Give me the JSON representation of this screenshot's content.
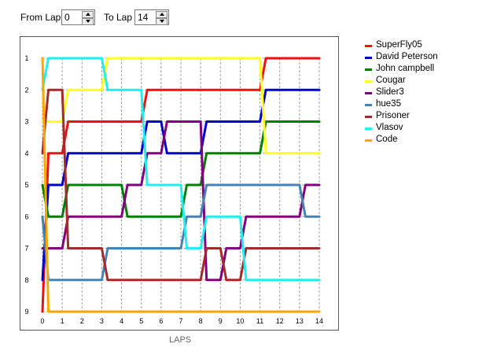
{
  "toolbar": {
    "from_label": "From Lap",
    "from_value": "0",
    "to_label": "To Lap",
    "to_value": "14"
  },
  "chart_data": {
    "type": "line",
    "xlabel": "LAPS",
    "ylabel": "",
    "x_ticks": [
      "0",
      "1",
      "2",
      "3",
      "4",
      "5",
      "6",
      "7",
      "8",
      "9",
      "10",
      "11",
      "12",
      "13",
      "14"
    ],
    "y_ticks": [
      "1",
      "2",
      "3",
      "4",
      "5",
      "6",
      "7",
      "8",
      "9"
    ],
    "xlim": [
      0,
      14
    ],
    "ylim": [
      1,
      9
    ],
    "y_inverted": true,
    "grid": true,
    "legend_position": "right",
    "series": [
      {
        "name": "SuperFly05",
        "color": "#ee1111",
        "points": [
          [
            0,
            9
          ],
          [
            1,
            4
          ],
          [
            2,
            3
          ],
          [
            3,
            3
          ],
          [
            4,
            3
          ],
          [
            5,
            3
          ],
          [
            6,
            2
          ],
          [
            7,
            2
          ],
          [
            8,
            2
          ],
          [
            9,
            2
          ],
          [
            10,
            2
          ],
          [
            11,
            2
          ],
          [
            12,
            1
          ],
          [
            13,
            1
          ],
          [
            14,
            1
          ]
        ]
      },
      {
        "name": "David Peterson",
        "color": "#0000cc",
        "points": [
          [
            0,
            8
          ],
          [
            1,
            5
          ],
          [
            2,
            4
          ],
          [
            3,
            4
          ],
          [
            4,
            4
          ],
          [
            5,
            4
          ],
          [
            6,
            3
          ],
          [
            7,
            4
          ],
          [
            8,
            4
          ],
          [
            9,
            3
          ],
          [
            10,
            3
          ],
          [
            11,
            3
          ],
          [
            12,
            2
          ],
          [
            13,
            2
          ],
          [
            14,
            2
          ]
        ]
      },
      {
        "name": "John campbell",
        "color": "#008000",
        "points": [
          [
            0,
            5
          ],
          [
            1,
            6
          ],
          [
            2,
            5
          ],
          [
            3,
            5
          ],
          [
            4,
            5
          ],
          [
            5,
            6
          ],
          [
            6,
            6
          ],
          [
            7,
            6
          ],
          [
            8,
            5
          ],
          [
            9,
            4
          ],
          [
            10,
            4
          ],
          [
            11,
            4
          ],
          [
            12,
            3
          ],
          [
            13,
            3
          ],
          [
            14,
            3
          ]
        ]
      },
      {
        "name": "Cougar",
        "color": "#ffff22",
        "points": [
          [
            0,
            3
          ],
          [
            1,
            3
          ],
          [
            2,
            2
          ],
          [
            3,
            2
          ],
          [
            4,
            1
          ],
          [
            5,
            1
          ],
          [
            6,
            1
          ],
          [
            7,
            1
          ],
          [
            8,
            1
          ],
          [
            9,
            1
          ],
          [
            10,
            1
          ],
          [
            11,
            1
          ],
          [
            12,
            4
          ],
          [
            13,
            4
          ],
          [
            14,
            4
          ]
        ]
      },
      {
        "name": "Slider3",
        "color": "#800080",
        "points": [
          [
            0,
            7
          ],
          [
            1,
            7
          ],
          [
            2,
            6
          ],
          [
            3,
            6
          ],
          [
            4,
            6
          ],
          [
            5,
            5
          ],
          [
            6,
            4
          ],
          [
            7,
            3
          ],
          [
            8,
            3
          ],
          [
            9,
            8
          ],
          [
            10,
            7
          ],
          [
            11,
            6
          ],
          [
            12,
            6
          ],
          [
            13,
            6
          ],
          [
            14,
            5
          ]
        ]
      },
      {
        "name": "hue35",
        "color": "#4682b4",
        "points": [
          [
            0,
            6
          ],
          [
            1,
            8
          ],
          [
            2,
            8
          ],
          [
            3,
            8
          ],
          [
            4,
            7
          ],
          [
            5,
            7
          ],
          [
            6,
            7
          ],
          [
            7,
            7
          ],
          [
            8,
            6
          ],
          [
            9,
            5
          ],
          [
            10,
            5
          ],
          [
            11,
            5
          ],
          [
            12,
            5
          ],
          [
            13,
            5
          ],
          [
            14,
            6
          ]
        ]
      },
      {
        "name": "Prisoner",
        "color": "#a52a2a",
        "points": [
          [
            0,
            4
          ],
          [
            1,
            2
          ],
          [
            2,
            7
          ],
          [
            3,
            7
          ],
          [
            4,
            8
          ],
          [
            5,
            8
          ],
          [
            6,
            8
          ],
          [
            7,
            8
          ],
          [
            8,
            8
          ],
          [
            9,
            7
          ],
          [
            10,
            8
          ],
          [
            11,
            7
          ],
          [
            12,
            7
          ],
          [
            13,
            7
          ],
          [
            14,
            7
          ]
        ]
      },
      {
        "name": "Vlasov",
        "color": "#22eeee",
        "points": [
          [
            0,
            2
          ],
          [
            1,
            1
          ],
          [
            2,
            1
          ],
          [
            3,
            1
          ],
          [
            4,
            2
          ],
          [
            5,
            2
          ],
          [
            6,
            5
          ],
          [
            7,
            5
          ],
          [
            8,
            7
          ],
          [
            9,
            6
          ],
          [
            10,
            6
          ],
          [
            11,
            8
          ],
          [
            12,
            8
          ],
          [
            13,
            8
          ],
          [
            14,
            8
          ]
        ]
      },
      {
        "name": "Code",
        "color": "#ffa500",
        "points": [
          [
            0,
            1
          ],
          [
            1,
            9
          ],
          [
            2,
            9
          ],
          [
            3,
            9
          ],
          [
            4,
            9
          ],
          [
            5,
            9
          ],
          [
            6,
            9
          ],
          [
            7,
            9
          ],
          [
            8,
            9
          ],
          [
            9,
            9
          ],
          [
            10,
            9
          ],
          [
            11,
            9
          ],
          [
            12,
            9
          ],
          [
            13,
            9
          ],
          [
            14,
            9
          ]
        ]
      }
    ]
  }
}
